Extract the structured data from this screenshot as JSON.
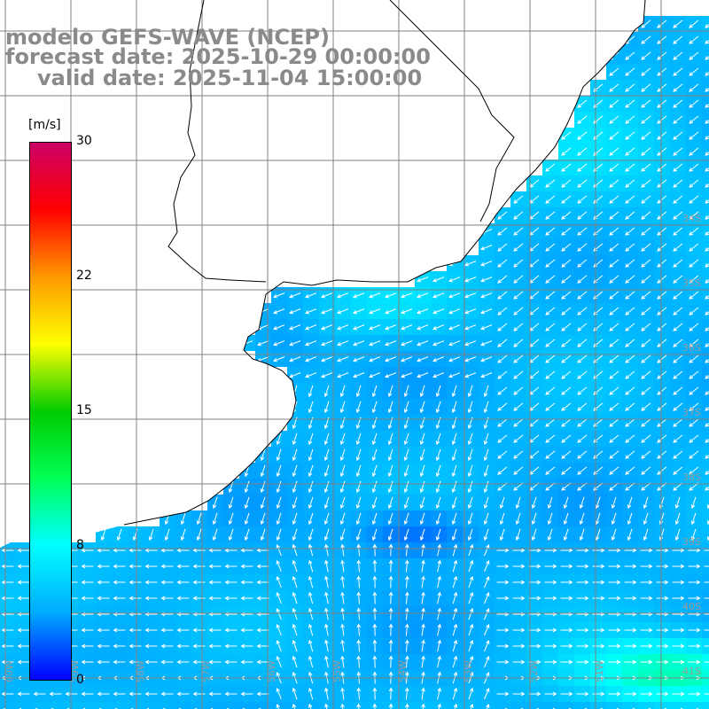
{
  "titles": {
    "line1": "modelo GEFS-WAVE (NCEP)",
    "line2": "forecast date: 2025-10-29 00:00:00",
    "line3": "valid date: 2025-11-04 15:00:00"
  },
  "colorbar": {
    "unit": "[m/s]",
    "ticks": [
      "30",
      "22",
      "15",
      "8",
      "0"
    ],
    "tick_values": [
      30,
      22,
      15,
      8,
      0
    ],
    "min": 0,
    "max": 30,
    "colors": [
      "#0000ff",
      "#00aaff",
      "#00ffff",
      "#00ff55",
      "#00cc00",
      "#ffff00",
      "#ff9900",
      "#ff0000",
      "#cc0066"
    ]
  },
  "map": {
    "type": "wind-vector-map",
    "land_color": "#ffffff",
    "coastline_color": "#000000",
    "grid_color": "#808080",
    "arrow_color": "#ffffff",
    "lat_labels": [
      "34S",
      "35S",
      "36S",
      "37S",
      "38S",
      "39S",
      "40S",
      "41S"
    ],
    "lon_labels": [
      "60W",
      "59W",
      "58W",
      "57W",
      "56W",
      "55W",
      "54W",
      "53W",
      "52W",
      "51W"
    ]
  }
}
